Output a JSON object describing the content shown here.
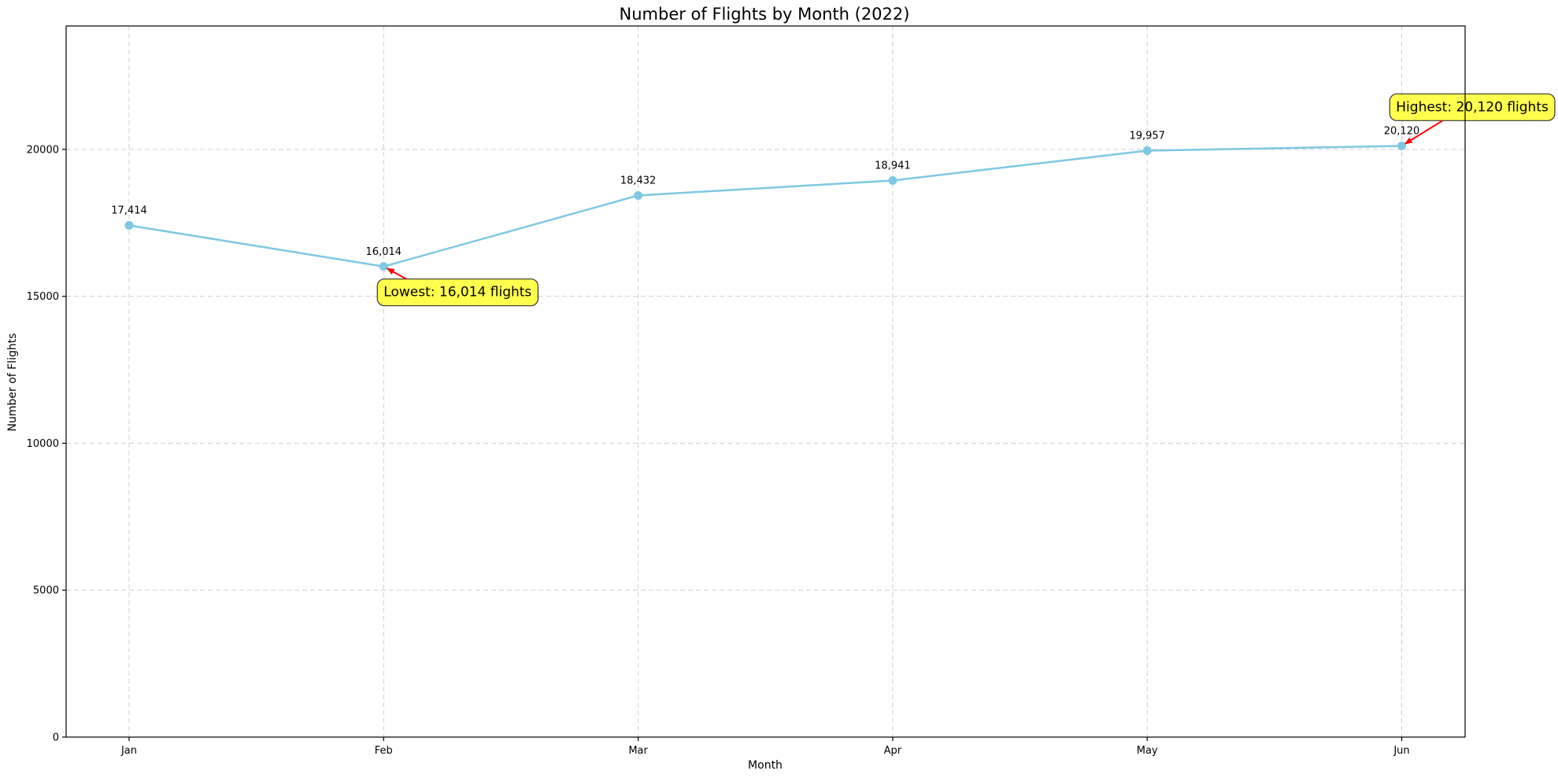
{
  "chart_data": {
    "type": "line",
    "title": "Number of Flights by Month (2022)",
    "xlabel": "Month",
    "ylabel": "Number of Flights",
    "categories": [
      "Jan",
      "Feb",
      "Mar",
      "Apr",
      "May",
      "Jun"
    ],
    "series": [
      {
        "values": [
          17414,
          16014,
          18432,
          18941,
          19957,
          20120
        ],
        "labels": [
          "17,414",
          "16,014",
          "18,432",
          "18,941",
          "19,957",
          "20,120"
        ],
        "color": "#7ec8e3"
      }
    ],
    "ylim": [
      0,
      24200
    ],
    "yticks": [
      0,
      5000,
      10000,
      15000,
      20000
    ],
    "ytick_labels": [
      "0",
      "5000",
      "10000",
      "15000",
      "20000"
    ],
    "grid": true,
    "annotations": [
      {
        "text": "Lowest: 16,014 flights",
        "category": "Feb",
        "value": 16014,
        "text_category": 1.0,
        "text_value": 15000,
        "arrow_color": "#ff0000",
        "box_color": "#ffff4d"
      },
      {
        "text": "Highest: 20,120 flights",
        "category": "Jun",
        "value": 20120,
        "text_category": 5.0,
        "text_value": 21300,
        "arrow_color": "#ff0000",
        "box_color": "#ffff4d"
      }
    ]
  }
}
